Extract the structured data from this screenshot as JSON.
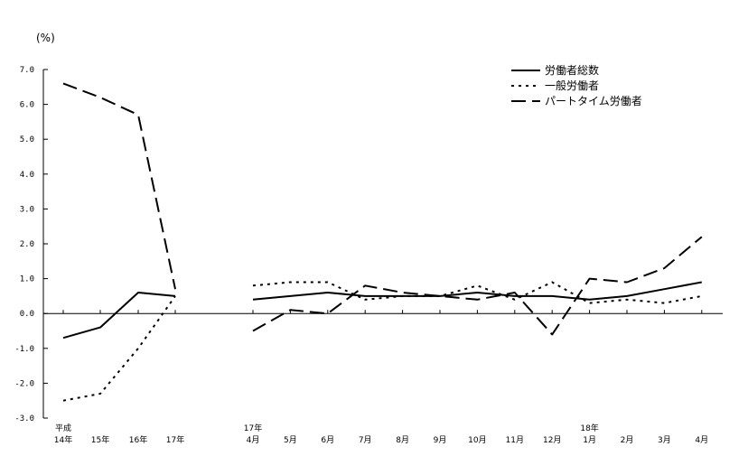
{
  "chart_data": {
    "type": "line",
    "unit_label": "(%)",
    "ylim": [
      -3.0,
      7.0
    ],
    "y_ticks": [
      "7.0",
      "6.0",
      "5.0",
      "4.0",
      "3.0",
      "2.0",
      "1.0",
      "0.0",
      "-1.0",
      "-2.0",
      "-3.0"
    ],
    "annual_categories": [
      [
        "平成",
        "14年"
      ],
      [
        "",
        "15年"
      ],
      [
        "",
        "16年"
      ],
      [
        "",
        "17年"
      ]
    ],
    "monthly_categories": [
      [
        "17年",
        "4月"
      ],
      [
        "",
        "5月"
      ],
      [
        "",
        "6月"
      ],
      [
        "",
        "7月"
      ],
      [
        "",
        "8月"
      ],
      [
        "",
        "9月"
      ],
      [
        "",
        "10月"
      ],
      [
        "",
        "11月"
      ],
      [
        "",
        "12月"
      ],
      [
        "18年",
        "1月"
      ],
      [
        "",
        "2月"
      ],
      [
        "",
        "3月"
      ],
      [
        "",
        "4月"
      ]
    ],
    "series": [
      {
        "name": "労働者総数",
        "dash": "solid",
        "annual": [
          -0.7,
          -0.4,
          0.6,
          0.5
        ],
        "monthly": [
          0.4,
          0.5,
          0.6,
          0.5,
          0.5,
          0.5,
          0.6,
          0.5,
          0.5,
          0.4,
          0.5,
          0.7,
          0.9
        ]
      },
      {
        "name": "一般労働者",
        "dash": "dotted",
        "annual": [
          -2.5,
          -2.3,
          -1.0,
          0.5
        ],
        "monthly": [
          0.8,
          0.9,
          0.9,
          0.4,
          0.5,
          0.5,
          0.8,
          0.4,
          0.9,
          0.3,
          0.4,
          0.3,
          0.5
        ]
      },
      {
        "name": "パートタイム労働者",
        "dash": "dashed",
        "annual": [
          6.6,
          6.2,
          5.7,
          0.7
        ],
        "monthly": [
          -0.5,
          0.1,
          0.0,
          0.8,
          0.6,
          0.5,
          0.4,
          0.6,
          -0.6,
          1.0,
          0.9,
          1.3,
          2.2
        ]
      }
    ],
    "grid": false,
    "legend": "top-right"
  }
}
